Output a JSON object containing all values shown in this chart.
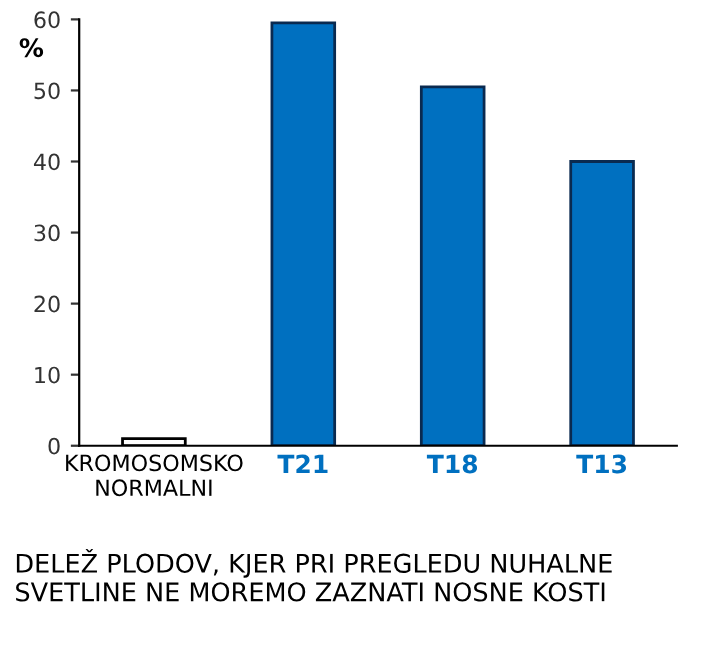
{
  "chart_data": {
    "type": "bar",
    "categories": [
      "KROMOSOMSKO\nNORMALNI",
      "T21",
      "T18",
      "T13"
    ],
    "values": [
      1,
      59.5,
      50.5,
      40
    ],
    "colors": [
      "#ffffff",
      "#0070c0",
      "#0070c0",
      "#0070c0"
    ],
    "ylabel": "%",
    "ylim": [
      0,
      60
    ],
    "yticks": [
      0,
      10,
      20,
      30,
      40,
      50,
      60
    ],
    "grid": false,
    "legend": false,
    "annotations": [
      "DELEŽ PLODOV, KJER PRI PREGLEDU NUHALNE SVETLINE NE MOREMO ZAZNATI NOSNE KOSTI"
    ]
  }
}
